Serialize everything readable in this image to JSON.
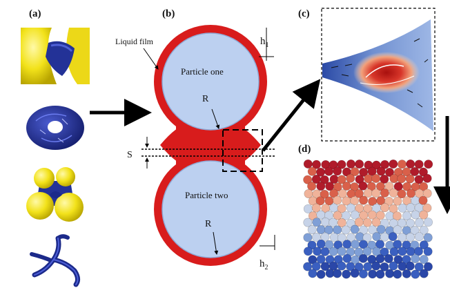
{
  "panels": {
    "a": "(a)",
    "b": "(b)",
    "c": "(c)",
    "d": "(d)"
  },
  "annotations": {
    "liquid_film": "Liquid film",
    "particle_one": "Particle one",
    "particle_two": "Particle two",
    "radius_top": "R",
    "radius_bottom": "R",
    "gap": "S",
    "h1": "h",
    "h1_sub": "1",
    "h2": "h",
    "h2_sub": "2"
  },
  "colors": {
    "film": "#d81c1c",
    "particle": "#bcd0f0",
    "particle_edge": "#8fa9d6",
    "yellow": "#f2e21a",
    "navy": "#1c2a8a",
    "arrow": "#000000"
  },
  "packing_gradient": [
    "#b01b2a",
    "#d9604a",
    "#f0b39a",
    "#c7d3e8",
    "#7f9fd6",
    "#3a5fc0",
    "#2a47a8"
  ]
}
